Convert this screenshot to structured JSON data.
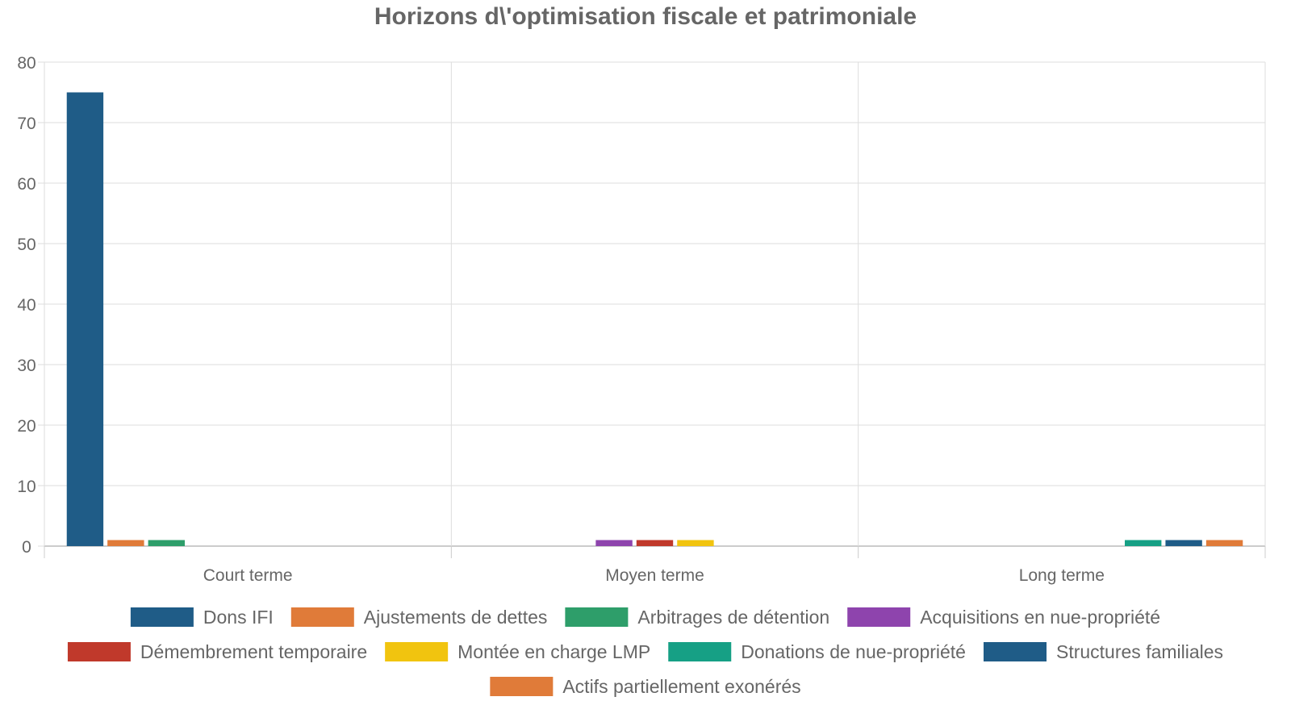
{
  "chart_data": {
    "type": "bar",
    "title": "Horizons d\\'optimisation fiscale et patrimoniale",
    "xlabel": "",
    "ylabel": "",
    "categories": [
      "Court terme",
      "Moyen terme",
      "Long terme"
    ],
    "ylim": [
      0,
      80
    ],
    "yticks": [
      0,
      10,
      20,
      30,
      40,
      50,
      60,
      70,
      80
    ],
    "grid": true,
    "legend_position": "bottom",
    "series": [
      {
        "name": "Dons IFI",
        "color": "#1f5c87",
        "values": [
          75,
          null,
          null
        ]
      },
      {
        "name": "Ajustements de dettes",
        "color": "#e07b39",
        "values": [
          1,
          null,
          null
        ]
      },
      {
        "name": "Arbitrages de détention",
        "color": "#2e9e6a",
        "values": [
          1,
          null,
          null
        ]
      },
      {
        "name": "Acquisitions en nue-propriété",
        "color": "#8e44ad",
        "values": [
          null,
          1,
          null
        ]
      },
      {
        "name": "Démembrement temporaire",
        "color": "#c0392b",
        "values": [
          null,
          1,
          null
        ]
      },
      {
        "name": "Montée en charge LMP",
        "color": "#f1c40f",
        "values": [
          null,
          1,
          null
        ]
      },
      {
        "name": "Donations de nue-propriété",
        "color": "#16a085",
        "values": [
          null,
          null,
          1
        ]
      },
      {
        "name": "Structures familiales",
        "color": "#1f5c87",
        "values": [
          null,
          null,
          1
        ]
      },
      {
        "name": "Actifs partiellement exonérés",
        "color": "#e07b39",
        "values": [
          null,
          null,
          1
        ]
      }
    ]
  }
}
